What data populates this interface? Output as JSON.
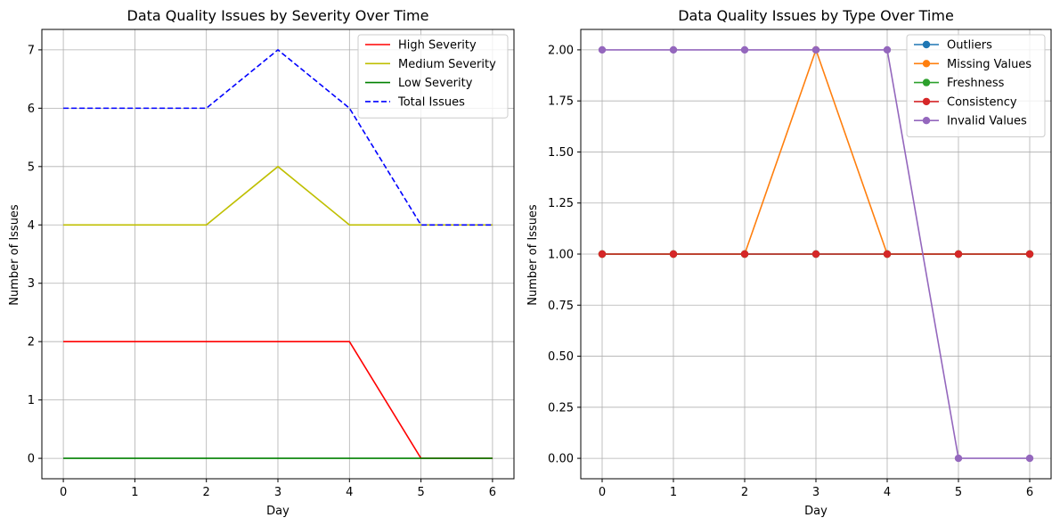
{
  "chart_data": [
    {
      "type": "line",
      "title": "Data Quality Issues by Severity Over Time",
      "xlabel": "Day",
      "ylabel": "Number of Issues",
      "x": [
        0,
        1,
        2,
        3,
        4,
        5,
        6
      ],
      "xlim": [
        -0.3,
        6.3
      ],
      "ylim": [
        -0.35,
        7.35
      ],
      "xticks": [
        "0",
        "1",
        "2",
        "3",
        "4",
        "5",
        "6"
      ],
      "yticks": [
        "0",
        "1",
        "2",
        "3",
        "4",
        "5",
        "6",
        "7"
      ],
      "grid": true,
      "legend_position": "upper right",
      "markers": false,
      "series": [
        {
          "name": "High Severity",
          "color": "#ff0000",
          "dash": false,
          "values": [
            2,
            2,
            2,
            2,
            2,
            0,
            0
          ]
        },
        {
          "name": "Medium Severity",
          "color": "#bfbf00",
          "dash": false,
          "values": [
            4,
            4,
            4,
            5,
            4,
            4,
            4
          ]
        },
        {
          "name": "Low Severity",
          "color": "#008000",
          "dash": false,
          "values": [
            0,
            0,
            0,
            0,
            0,
            0,
            0
          ]
        },
        {
          "name": "Total Issues",
          "color": "#0000ff",
          "dash": true,
          "values": [
            6,
            6,
            6,
            7,
            6,
            4,
            4
          ]
        }
      ]
    },
    {
      "type": "line",
      "title": "Data Quality Issues by Type Over Time",
      "xlabel": "Day",
      "ylabel": "Number of Issues",
      "x": [
        0,
        1,
        2,
        3,
        4,
        5,
        6
      ],
      "xlim": [
        -0.3,
        6.3
      ],
      "ylim": [
        -0.1,
        2.1
      ],
      "xticks": [
        "0",
        "1",
        "2",
        "3",
        "4",
        "5",
        "6"
      ],
      "yticks": [
        "0.00",
        "0.25",
        "0.50",
        "0.75",
        "1.00",
        "1.25",
        "1.50",
        "1.75",
        "2.00"
      ],
      "grid": true,
      "legend_position": "upper right",
      "markers": true,
      "series": [
        {
          "name": "Outliers",
          "color": "#1f77b4",
          "dash": false,
          "values": [
            1,
            1,
            1,
            1,
            1,
            1,
            1
          ]
        },
        {
          "name": "Missing Values",
          "color": "#ff7f0e",
          "dash": false,
          "values": [
            1,
            1,
            1,
            2,
            1,
            1,
            1
          ]
        },
        {
          "name": "Freshness",
          "color": "#2ca02c",
          "dash": false,
          "values": [
            1,
            1,
            1,
            1,
            1,
            1,
            1
          ]
        },
        {
          "name": "Consistency",
          "color": "#d62728",
          "dash": false,
          "values": [
            1,
            1,
            1,
            1,
            1,
            1,
            1
          ]
        },
        {
          "name": "Invalid Values",
          "color": "#9467bd",
          "dash": false,
          "values": [
            2,
            2,
            2,
            2,
            2,
            0,
            0
          ]
        }
      ]
    }
  ]
}
